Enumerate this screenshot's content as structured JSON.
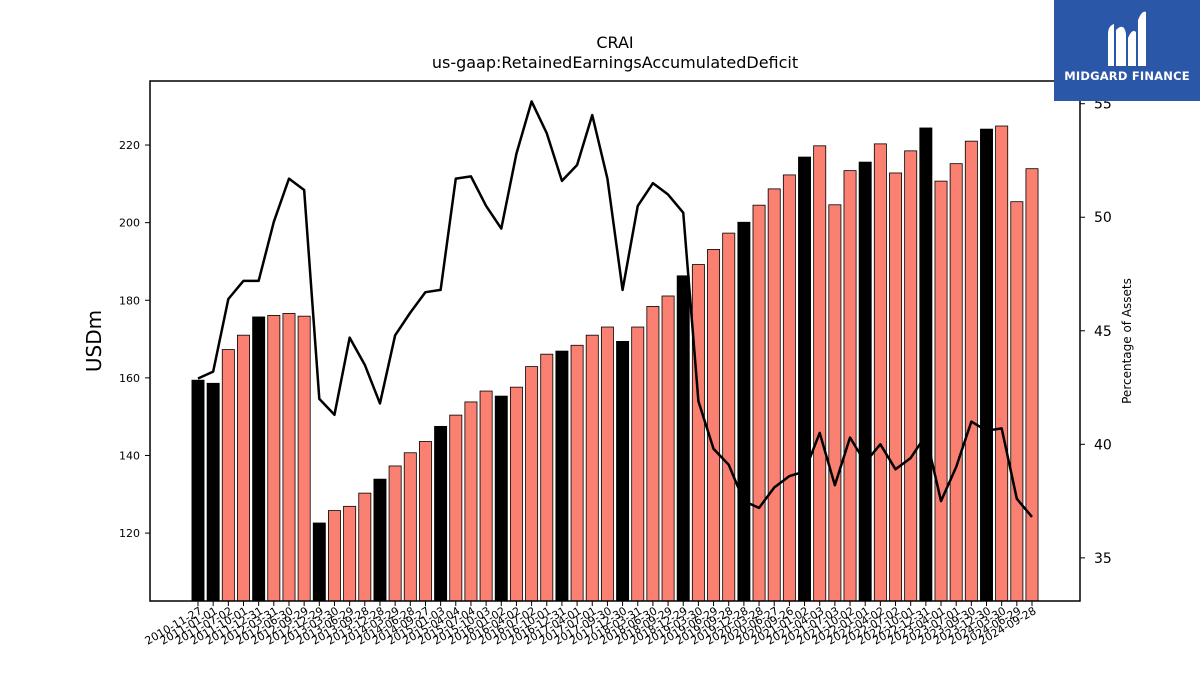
{
  "chart_data": {
    "type": "bar",
    "title": "CRAI",
    "subtitle": "us-gaap:RetainedEarningsAccumulatedDeficit",
    "ylabel": "USDm",
    "ylabel_right": "Percentage of Assets",
    "ylim": [
      102.5,
      236.5
    ],
    "ylim_right": [
      33.1,
      56.0
    ],
    "yticks": [
      120,
      140,
      160,
      180,
      200,
      220
    ],
    "yticks_right": [
      35,
      40,
      45,
      50,
      55
    ],
    "grid": false,
    "colors": {
      "annual": "#000000",
      "quarterly": "#fa8072",
      "line": "#000000"
    },
    "categories": [
      "2010-11-27",
      "2011-01-01",
      "2011-07-02",
      "2011-10-01",
      "2011-12-31",
      "2012-03-31",
      "2012-06-30",
      "2012-09-29",
      "2012-12-29",
      "2013-03-30",
      "2013-06-29",
      "2013-09-28",
      "2013-12-28",
      "2014-03-29",
      "2014-06-28",
      "2014-09-27",
      "2015-01-03",
      "2015-04-04",
      "2015-07-04",
      "2015-10-03",
      "2016-01-02",
      "2016-04-02",
      "2016-07-02",
      "2016-10-01",
      "2016-12-31",
      "2017-04-01",
      "2017-07-01",
      "2017-09-30",
      "2017-12-30",
      "2018-03-31",
      "2018-06-30",
      "2018-09-29",
      "2018-12-29",
      "2019-03-30",
      "2019-06-29",
      "2019-09-28",
      "2019-12-28",
      "2020-03-28",
      "2020-06-27",
      "2020-09-26",
      "2021-01-02",
      "2021-04-03",
      "2021-07-03",
      "2021-10-02",
      "2022-01-01",
      "2022-04-02",
      "2022-07-02",
      "2022-10-01",
      "2022-12-31",
      "2023-04-01",
      "2023-07-01",
      "2023-09-30",
      "2023-12-30",
      "2024-03-30",
      "2024-06-29",
      "2024-09-28"
    ],
    "values": [
      159.4,
      158.6,
      167.3,
      171.0,
      175.7,
      176.1,
      176.6,
      175.9,
      122.6,
      125.8,
      126.9,
      130.3,
      133.9,
      137.3,
      140.7,
      143.6,
      147.5,
      150.4,
      153.8,
      156.6,
      155.3,
      157.6,
      162.9,
      166.1,
      166.9,
      168.4,
      171.0,
      173.1,
      169.4,
      173.1,
      178.4,
      181.1,
      186.3,
      189.2,
      193.1,
      197.3,
      200.1,
      204.5,
      208.7,
      212.3,
      216.9,
      219.8,
      204.6,
      213.4,
      215.6,
      220.3,
      212.8,
      218.5,
      224.4,
      210.7,
      215.2,
      221.0,
      224.1,
      224.9,
      205.4,
      213.9
    ],
    "bar_type": [
      "annual",
      "annual",
      "quarterly",
      "quarterly",
      "annual",
      "quarterly",
      "quarterly",
      "quarterly",
      "annual",
      "quarterly",
      "quarterly",
      "quarterly",
      "annual",
      "quarterly",
      "quarterly",
      "quarterly",
      "annual",
      "quarterly",
      "quarterly",
      "quarterly",
      "annual",
      "quarterly",
      "quarterly",
      "quarterly",
      "annual",
      "quarterly",
      "quarterly",
      "quarterly",
      "annual",
      "quarterly",
      "quarterly",
      "quarterly",
      "annual",
      "quarterly",
      "quarterly",
      "quarterly",
      "annual",
      "quarterly",
      "quarterly",
      "quarterly",
      "annual",
      "quarterly",
      "quarterly",
      "quarterly",
      "annual",
      "quarterly",
      "quarterly",
      "quarterly",
      "annual",
      "quarterly",
      "quarterly",
      "quarterly",
      "annual",
      "quarterly",
      "quarterly",
      "quarterly"
    ],
    "line_values": [
      42.9,
      43.2,
      46.4,
      47.2,
      47.2,
      49.8,
      51.7,
      51.2,
      42.0,
      41.3,
      44.7,
      43.5,
      41.8,
      44.8,
      45.8,
      46.7,
      46.8,
      51.7,
      51.8,
      50.5,
      49.5,
      52.8,
      55.1,
      53.7,
      51.6,
      52.3,
      54.5,
      51.7,
      46.8,
      50.5,
      51.5,
      51.0,
      50.2,
      41.9,
      39.8,
      39.1,
      37.5,
      37.2,
      38.1,
      38.6,
      38.8,
      40.5,
      38.2,
      40.3,
      39.2,
      40.0,
      38.9,
      39.4,
      40.4,
      37.5,
      39.0,
      41.0,
      40.6,
      40.7,
      37.6,
      36.8
    ]
  },
  "logo": {
    "text": "MIDGARD FINANCE",
    "icon": "midgard-logo-icon",
    "color": "#2b57a8"
  }
}
